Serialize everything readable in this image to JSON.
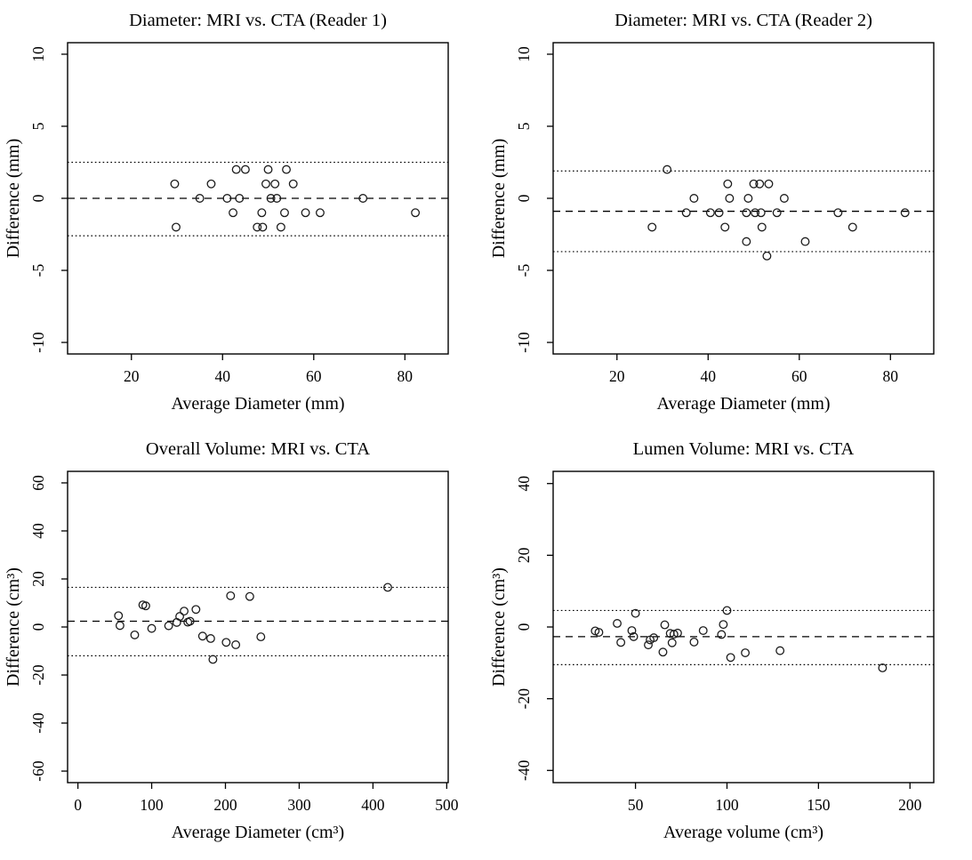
{
  "page": {
    "background_color": "#ffffff",
    "text_color": "#000000",
    "point_stroke_color": "#1c1c1c",
    "axis_color": "#000000"
  },
  "chart_data": [
    {
      "id": "diameter-reader1",
      "type": "scatter",
      "title": "Diameter: MRI vs. CTA (Reader 1)",
      "xlabel": "Average Diameter (mm)",
      "ylabel": "Difference  (mm)",
      "x_ticks": [
        20,
        40,
        60,
        80
      ],
      "y_ticks": [
        10,
        5,
        0,
        -5,
        -10
      ],
      "xlim": [
        6,
        89.5
      ],
      "ylim": [
        -10.8,
        10.8
      ],
      "grid": false,
      "legend": null,
      "mean_line": 0.0,
      "upper_loa": 2.5,
      "lower_loa": -2.6,
      "points": [
        [
          43,
          2
        ],
        [
          45,
          2
        ],
        [
          50,
          2
        ],
        [
          54,
          2
        ],
        [
          29.5,
          1
        ],
        [
          37.5,
          1
        ],
        [
          49.5,
          1
        ],
        [
          51.5,
          1
        ],
        [
          55.5,
          1
        ],
        [
          35,
          0
        ],
        [
          41,
          0
        ],
        [
          43.7,
          0
        ],
        [
          50.6,
          0
        ],
        [
          51.9,
          0
        ],
        [
          70.8,
          0
        ],
        [
          42.3,
          -1
        ],
        [
          48.6,
          -1
        ],
        [
          53.6,
          -1
        ],
        [
          58.2,
          -1
        ],
        [
          61.4,
          -1
        ],
        [
          82.3,
          -1
        ],
        [
          29.8,
          -2
        ],
        [
          47.6,
          -2
        ],
        [
          48.8,
          -2
        ],
        [
          52.8,
          -2
        ]
      ]
    },
    {
      "id": "diameter-reader2",
      "type": "scatter",
      "title": "Diameter: MRI vs. CTA (Reader 2)",
      "xlabel": "Average Diameter (mm)",
      "ylabel": "Difference  (mm)",
      "x_ticks": [
        20,
        40,
        60,
        80
      ],
      "y_ticks": [
        10,
        5,
        0,
        -5,
        -10
      ],
      "xlim": [
        6,
        89.5
      ],
      "ylim": [
        -10.8,
        10.8
      ],
      "grid": false,
      "legend": null,
      "mean_line": -0.9,
      "upper_loa": 1.9,
      "lower_loa": -3.7,
      "points": [
        [
          31,
          2
        ],
        [
          44.3,
          1
        ],
        [
          50,
          1
        ],
        [
          51.3,
          1
        ],
        [
          53.3,
          1
        ],
        [
          36.9,
          0
        ],
        [
          44.7,
          0
        ],
        [
          48.8,
          0
        ],
        [
          56.7,
          0
        ],
        [
          35.2,
          -1
        ],
        [
          40.5,
          -1
        ],
        [
          42.4,
          -1
        ],
        [
          48.4,
          -1
        ],
        [
          50.3,
          -1
        ],
        [
          51.6,
          -1
        ],
        [
          55.1,
          -1
        ],
        [
          68.5,
          -1
        ],
        [
          83.2,
          -1
        ],
        [
          27.7,
          -2
        ],
        [
          43.7,
          -2
        ],
        [
          51.8,
          -2
        ],
        [
          71.7,
          -2
        ],
        [
          48.4,
          -3
        ],
        [
          61.3,
          -3
        ],
        [
          52.9,
          -4
        ]
      ]
    },
    {
      "id": "overall-volume",
      "type": "scatter",
      "title": "Overall Volume: MRI vs. CTA",
      "xlabel": "Average Diameter (cm³)",
      "ylabel": "Difference  (cm³)",
      "x_ticks": [
        0,
        100,
        200,
        300,
        400,
        500
      ],
      "y_ticks": [
        60,
        40,
        20,
        0,
        -20,
        -40,
        -60
      ],
      "xlim": [
        -14,
        502
      ],
      "ylim": [
        -64.8,
        64.8
      ],
      "grid": false,
      "legend": null,
      "mean_line": 2.4,
      "upper_loa": 16.5,
      "lower_loa": -12.0,
      "points": [
        [
          55,
          4.7
        ],
        [
          57,
          0.6
        ],
        [
          77,
          -3.3
        ],
        [
          88,
          9.2
        ],
        [
          92,
          8.8
        ],
        [
          100,
          -0.6
        ],
        [
          123,
          0.5
        ],
        [
          134,
          1.9
        ],
        [
          138,
          4.4
        ],
        [
          144,
          6.6
        ],
        [
          149,
          2.0
        ],
        [
          152,
          2.4
        ],
        [
          160,
          7.3
        ],
        [
          169,
          -3.8
        ],
        [
          180,
          -4.8
        ],
        [
          183,
          -13.5
        ],
        [
          201,
          -6.4
        ],
        [
          207,
          13.0
        ],
        [
          214,
          -7.4
        ],
        [
          233,
          12.7
        ],
        [
          248,
          -4.1
        ],
        [
          420,
          16.5
        ]
      ]
    },
    {
      "id": "lumen-volume",
      "type": "scatter",
      "title": "Lumen Volume: MRI vs. CTA",
      "xlabel": "Average volume (cm³)",
      "ylabel": "Difference  (cm³)",
      "x_ticks": [
        50,
        100,
        150,
        200
      ],
      "y_ticks": [
        40,
        20,
        0,
        -20,
        -40
      ],
      "xlim": [
        5,
        213
      ],
      "ylim": [
        -43.4,
        43.4
      ],
      "grid": false,
      "legend": null,
      "mean_line": -2.7,
      "upper_loa": 4.6,
      "lower_loa": -10.5,
      "points": [
        [
          28,
          -1.1
        ],
        [
          30,
          -1.5
        ],
        [
          40,
          1.0
        ],
        [
          42,
          -4.3
        ],
        [
          48,
          -1.0
        ],
        [
          49,
          -2.7
        ],
        [
          50,
          3.8
        ],
        [
          57,
          -5.0
        ],
        [
          58,
          -3.6
        ],
        [
          60,
          -3.0
        ],
        [
          65,
          -7.0
        ],
        [
          66,
          0.6
        ],
        [
          69,
          -1.8
        ],
        [
          70,
          -4.4
        ],
        [
          71,
          -2.0
        ],
        [
          73,
          -1.7
        ],
        [
          82,
          -4.2
        ],
        [
          87,
          -1.0
        ],
        [
          97,
          -2.1
        ],
        [
          98,
          0.7
        ],
        [
          100,
          4.6
        ],
        [
          102,
          -8.5
        ],
        [
          110,
          -7.2
        ],
        [
          129,
          -6.6
        ],
        [
          185,
          -11.4
        ]
      ]
    }
  ]
}
